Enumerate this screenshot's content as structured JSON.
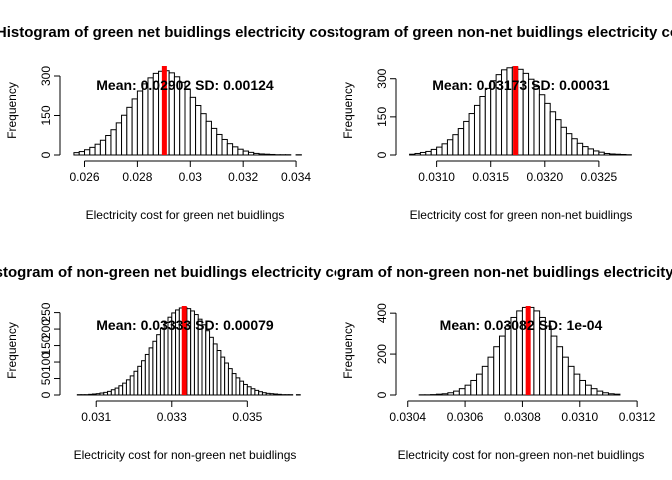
{
  "chart_data": [
    {
      "type": "histogram",
      "title": "Histogram of green net buidlings electricity cost",
      "xlabel": "Electricity cost for green net buidlings",
      "ylabel": "Frequency",
      "annotation": "Mean: 0.02902 SD: 0.00124",
      "mean": 0.02902,
      "color": "#ffffff",
      "edge_color": "#000000",
      "mean_color": "#ff0000",
      "bins": [
        0.0256,
        0.0258,
        0.026,
        0.0262,
        0.0264,
        0.0266,
        0.0268,
        0.027,
        0.0272,
        0.0274,
        0.0276,
        0.0278,
        0.028,
        0.0282,
        0.0284,
        0.0286,
        0.0288,
        0.029,
        0.0292,
        0.0294,
        0.0296,
        0.0298,
        0.03,
        0.0302,
        0.0304,
        0.0306,
        0.0308,
        0.031,
        0.0312,
        0.0314,
        0.0316,
        0.0318,
        0.032,
        0.0322,
        0.0324,
        0.0326,
        0.0328,
        0.033,
        0.0332,
        0.0334,
        0.0336,
        0.0338,
        0.034,
        0.0342
      ],
      "counts": [
        9,
        13,
        20,
        29,
        41,
        56,
        74,
        96,
        122,
        151,
        181,
        213,
        243,
        270,
        293,
        310,
        318,
        320,
        312,
        297,
        276,
        249,
        219,
        188,
        157,
        128,
        101,
        78,
        59,
        43,
        31,
        22,
        15,
        10,
        6,
        4,
        3,
        2,
        1,
        1,
        1,
        0,
        1
      ],
      "xlim": [
        0.0253,
        0.0343
      ],
      "ylim": [
        0,
        338
      ],
      "xticks": [
        0.026,
        0.028,
        0.03,
        0.032,
        0.034
      ],
      "yticks": [
        0,
        150,
        300
      ]
    },
    {
      "type": "histogram",
      "title": "Histogram of green non-net buidlings electricity cost",
      "xlabel": "Electricity cost for green non-net buidlings",
      "ylabel": "Frequency",
      "annotation": "Mean: 0.03173 SD: 0.00031",
      "mean": 0.03173,
      "color": "#ffffff",
      "edge_color": "#000000",
      "mean_color": "#ff0000",
      "bins": [
        0.03075,
        0.0308,
        0.03085,
        0.0309,
        0.03095,
        0.031,
        0.03105,
        0.0311,
        0.03115,
        0.0312,
        0.03125,
        0.0313,
        0.03135,
        0.0314,
        0.03145,
        0.0315,
        0.03155,
        0.0316,
        0.03165,
        0.0317,
        0.03175,
        0.0318,
        0.03185,
        0.0319,
        0.03195,
        0.032,
        0.03205,
        0.0321,
        0.03215,
        0.0322,
        0.03225,
        0.0323,
        0.03235,
        0.0324,
        0.03245,
        0.0325,
        0.03255,
        0.0326,
        0.03265,
        0.0327,
        0.03275,
        0.0328
      ],
      "counts": [
        3,
        6,
        10,
        14,
        22,
        31,
        44,
        60,
        80,
        104,
        132,
        163,
        195,
        230,
        262,
        292,
        316,
        335,
        343,
        346,
        337,
        321,
        298,
        269,
        237,
        203,
        170,
        139,
        109,
        84,
        64,
        46,
        33,
        24,
        16,
        11,
        6,
        4,
        3,
        2,
        1
      ],
      "xlim": [
        0.03068,
        0.03288
      ],
      "ylim": [
        0,
        350
      ],
      "xticks": [
        {
          "value": 0.031,
          "label": "0.0310"
        },
        0.0315,
        {
          "value": 0.032,
          "label": "0.0320"
        },
        0.0325
      ],
      "yticks": [
        0,
        150,
        300
      ]
    },
    {
      "type": "histogram",
      "title": "Histogram of non-green net buidlings electricity cost",
      "xlabel": "Electricity cost for non-green net buidlings",
      "ylabel": "Frequency",
      "annotation": "Mean: 0.03333 SD: 0.00079",
      "mean": 0.03333,
      "color": "#ffffff",
      "edge_color": "#000000",
      "mean_color": "#ff0000",
      "bins": [
        0.0305,
        0.0306,
        0.0307,
        0.0308,
        0.0309,
        0.031,
        0.0311,
        0.0312,
        0.0313,
        0.0314,
        0.0315,
        0.0316,
        0.0317,
        0.0318,
        0.0319,
        0.032,
        0.0321,
        0.0322,
        0.0323,
        0.0324,
        0.0325,
        0.0326,
        0.0327,
        0.0328,
        0.0329,
        0.033,
        0.0331,
        0.0332,
        0.0333,
        0.0334,
        0.0335,
        0.0336,
        0.0337,
        0.0338,
        0.0339,
        0.034,
        0.0341,
        0.0342,
        0.0343,
        0.0344,
        0.0345,
        0.0346,
        0.0347,
        0.0348,
        0.0349,
        0.035,
        0.0351,
        0.0352,
        0.0353,
        0.0354,
        0.0355,
        0.0356,
        0.0357,
        0.0358,
        0.0359,
        0.036,
        0.0361,
        0.0362,
        0.0363,
        0.0364
      ],
      "counts": [
        1,
        1,
        1,
        2,
        3,
        4,
        6,
        8,
        11,
        16,
        21,
        28,
        36,
        46,
        58,
        72,
        87,
        104,
        123,
        143,
        163,
        183,
        202,
        220,
        236,
        249,
        258,
        264,
        265,
        262,
        255,
        244,
        230,
        213,
        195,
        175,
        155,
        135,
        115,
        97,
        80,
        65,
        52,
        42,
        32,
        25,
        19,
        14,
        10,
        7,
        5,
        4,
        3,
        2,
        1,
        1,
        1,
        0,
        1
      ],
      "xlim": [
        0.0302,
        0.0365
      ],
      "ylim": [
        0,
        270
      ],
      "xticks": [
        0.031,
        0.033,
        0.035
      ],
      "yticks": [
        0,
        50,
        100,
        150,
        200,
        250
      ]
    },
    {
      "type": "histogram",
      "title": "Histogram of non-green non-net buidlings electricity cost",
      "xlabel": "Electricity cost for non-green non-net buidlings",
      "ylabel": "Frequency",
      "annotation": "Mean: 0.03082 SD: 1e-04",
      "mean": 0.03082,
      "color": "#ffffff",
      "edge_color": "#000000",
      "mean_color": "#ff0000",
      "bins": [
        0.03042,
        0.03044,
        0.03046,
        0.03048,
        0.0305,
        0.03052,
        0.03054,
        0.03056,
        0.03058,
        0.0306,
        0.03062,
        0.03064,
        0.03066,
        0.03068,
        0.0307,
        0.03072,
        0.03074,
        0.03076,
        0.03078,
        0.0308,
        0.03082,
        0.03084,
        0.03086,
        0.03088,
        0.0309,
        0.03092,
        0.03094,
        0.03096,
        0.03098,
        0.031,
        0.03102,
        0.03104,
        0.03106,
        0.03108,
        0.0311,
        0.03112,
        0.03114
      ],
      "counts": [
        0,
        1,
        1,
        2,
        4,
        6,
        11,
        19,
        31,
        48,
        71,
        102,
        140,
        185,
        236,
        288,
        337,
        379,
        411,
        428,
        428,
        411,
        379,
        337,
        288,
        236,
        185,
        140,
        102,
        71,
        48,
        31,
        19,
        11,
        6,
        4
      ],
      "xlim": [
        0.03038,
        0.03121
      ],
      "ylim": [
        0,
        435
      ],
      "xticks": [
        0.0304,
        0.0306,
        0.0308,
        {
          "value": 0.031,
          "label": "0.0310"
        },
        0.0312
      ],
      "yticks": [
        0,
        200,
        400
      ]
    }
  ]
}
